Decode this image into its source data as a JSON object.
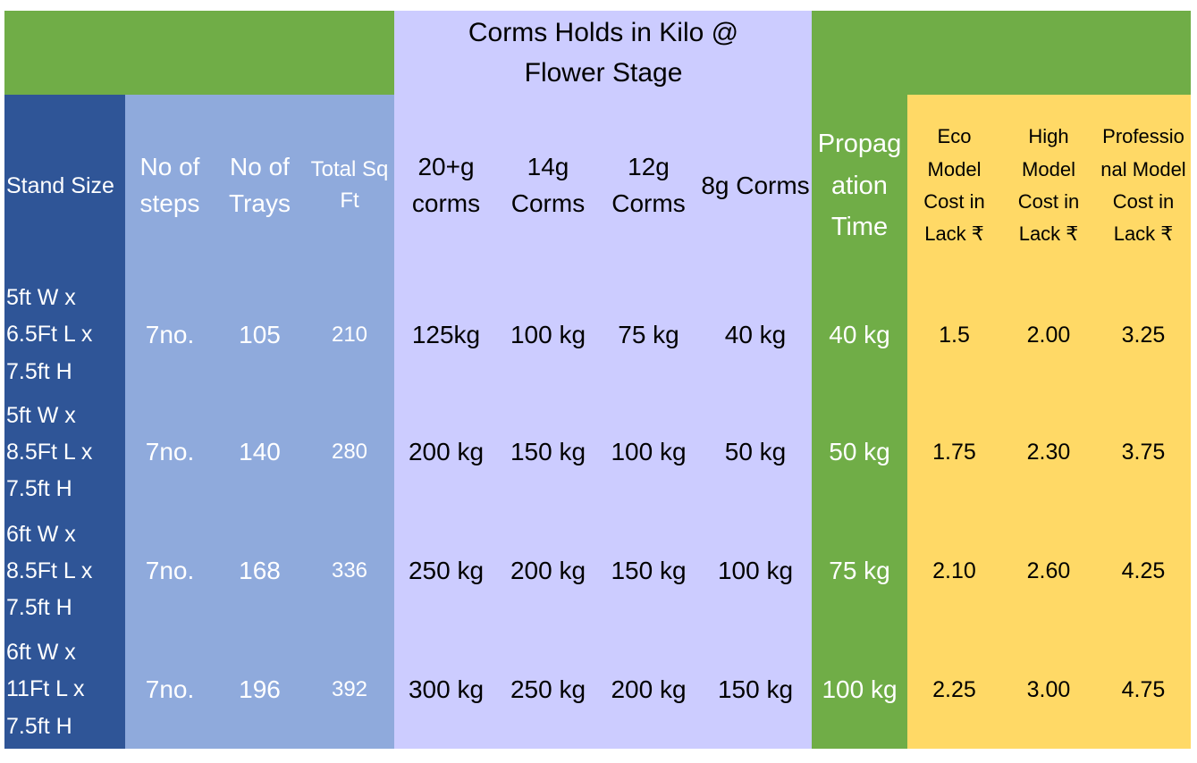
{
  "table": {
    "group_title": "Corms Holds in Kilo @ Flower Stage",
    "headers": [
      "Stand Size",
      "No of steps",
      "No of Trays",
      "Total Sq Ft",
      "20+g corms",
      "14g Corms",
      "12g Corms",
      "8g Corms",
      "Propagation Time",
      "Eco Model Cost in Lack ₹",
      "High Model Cost in Lack ₹",
      "Professional Model Cost in Lack ₹"
    ],
    "rows": [
      [
        "5ft W x 6.5Ft L x 7.5ft H",
        "7no.",
        "105",
        "210",
        "125kg",
        "100 kg",
        "75 kg",
        "40 kg",
        "40 kg",
        "1.5",
        "2.00",
        "3.25"
      ],
      [
        "5ft W x 8.5Ft L x 7.5ft H",
        "7no.",
        "140",
        "280",
        "200 kg",
        "150 kg",
        "100 kg",
        "50 kg",
        "50 kg",
        "1.75",
        "2.30",
        "3.75"
      ],
      [
        "6ft W x 8.5Ft L x 7.5ft H",
        "7no.",
        "168",
        "336",
        "250 kg",
        "200 kg",
        "150 kg",
        "100 kg",
        "75 kg",
        "2.10",
        "2.60",
        "4.25"
      ],
      [
        "6ft W x 11Ft L x 7.5ft H",
        "7no.",
        "196",
        "392",
        "300 kg",
        "250 kg",
        "200 kg",
        "150 kg",
        "100 kg",
        "2.25",
        "3.00",
        "4.75"
      ]
    ]
  }
}
